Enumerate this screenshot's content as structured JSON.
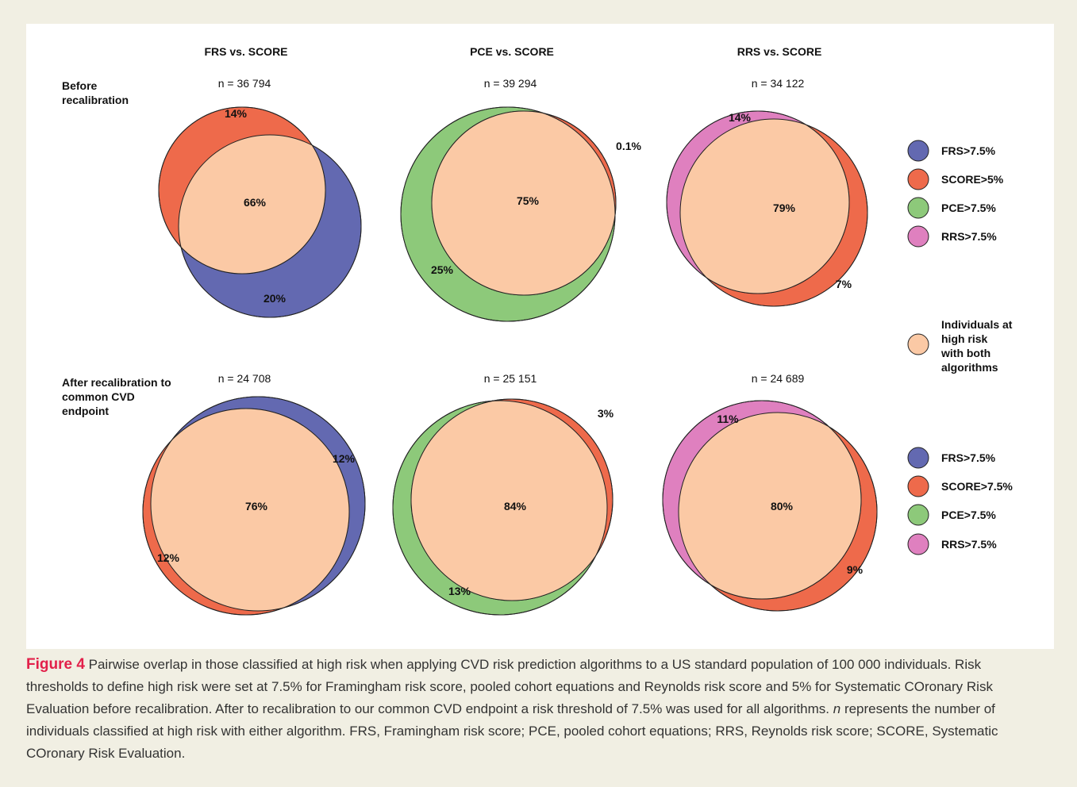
{
  "columns": [
    "FRS vs. SCORE",
    "PCE vs. SCORE",
    "RRS vs. SCORE"
  ],
  "rows": [
    "Before recalibration",
    "After recalibration to common CVD endpoint"
  ],
  "panels": [
    [
      {
        "n": "n = 36 794",
        "labels": [
          "14%",
          "66%",
          "20%"
        ]
      },
      {
        "n": "n = 39 294",
        "labels": [
          "0.1%",
          "75%",
          "25%"
        ]
      },
      {
        "n": "n = 34 122",
        "labels": [
          "14%",
          "79%",
          "7%"
        ]
      }
    ],
    [
      {
        "n": "n = 24 708",
        "labels": [
          "12%",
          "76%",
          "12%"
        ]
      },
      {
        "n": "n = 25 151",
        "labels": [
          "3%",
          "84%",
          "13%"
        ]
      },
      {
        "n": "n = 24 689",
        "labels": [
          "11%",
          "80%",
          "9%"
        ]
      }
    ]
  ],
  "legends": [
    [
      {
        "label": "FRS>7.5%",
        "color": "#6369b1"
      },
      {
        "label": "SCORE>5%",
        "color": "#ee6a4b"
      },
      {
        "label": "PCE>7.5%",
        "color": "#8dc97a"
      },
      {
        "label": "RRS>7.5%",
        "color": "#df80bf"
      }
    ],
    [
      {
        "label": "FRS>7.5%",
        "color": "#6369b1"
      },
      {
        "label": "SCORE>7.5%",
        "color": "#ee6a4b"
      },
      {
        "label": "PCE>7.5%",
        "color": "#8dc97a"
      },
      {
        "label": "RRS>7.5%",
        "color": "#df80bf"
      }
    ]
  ],
  "overlap_legend": {
    "label": "Individuals at high risk with both algorithms",
    "color": "#fbc9a5"
  },
  "caption": {
    "figure_label": "Figure 4",
    "text_1": "Pairwise overlap in those classified at high risk when applying CVD risk prediction algorithms to a US standard population of 100 000 individuals. Risk thresholds to define high risk were set at 7.5% for Framingham risk score, pooled cohort equations and Reynolds risk score and 5% for Systematic COronary Risk Evaluation before recalibration. After to recalibration to our common CVD endpoint a risk threshold of 7.5% was used for all algorithms. ",
    "italic": "n",
    "text_2": " represents the number of individuals classified at high risk with either algorithm. FRS, Framingham risk score; PCE, pooled cohort equations; RRS, Reynolds risk score; SCORE, Systematic COronary Risk Evaluation."
  }
}
